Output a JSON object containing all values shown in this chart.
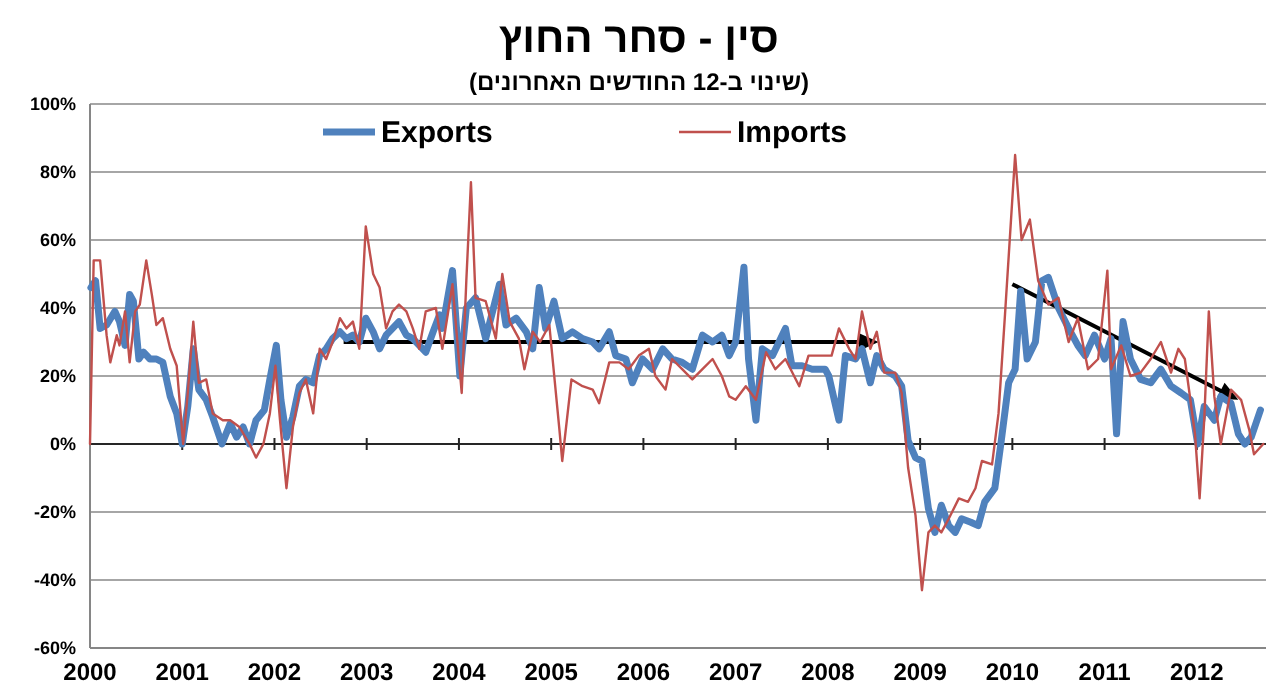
{
  "chart_data": {
    "type": "line",
    "title": "סין - סחר החוץ",
    "subtitle": "(שינוי ב-12 החודשים האחרונים)",
    "xlim": [
      2000,
      2012.75
    ],
    "xticks": [
      2000,
      2001,
      2002,
      2003,
      2004,
      2005,
      2006,
      2007,
      2008,
      2009,
      2010,
      2011,
      2012
    ],
    "ylim": [
      -60,
      100
    ],
    "yticks": [
      {
        "value": -60,
        "label": "-60%"
      },
      {
        "value": -40,
        "label": "-40%"
      },
      {
        "value": -20,
        "label": "-20%"
      },
      {
        "value": 0,
        "label": "0%"
      },
      {
        "value": 20,
        "label": "20%"
      },
      {
        "value": 40,
        "label": "40%"
      },
      {
        "value": 60,
        "label": "60%"
      },
      {
        "value": 80,
        "label": "80%"
      },
      {
        "value": 100,
        "label": "100%"
      }
    ],
    "grid": "y",
    "legend": "top",
    "marker": "none",
    "line_style": "solid",
    "series": [
      {
        "name": "Exports",
        "color": "#4f81bd",
        "x": [
          2000.01,
          2000.06,
          2000.11,
          2000.18,
          2000.27,
          2000.32,
          2000.38,
          2000.43,
          2000.47,
          2000.53,
          2000.58,
          2000.65,
          2000.72,
          2000.79,
          2000.87,
          2000.94,
          2001.0,
          2001.06,
          2001.12,
          2001.18,
          2001.26,
          2001.33,
          2001.43,
          2001.52,
          2001.59,
          2001.66,
          2001.73,
          2001.8,
          2001.89,
          2001.95,
          2002.02,
          2002.07,
          2002.13,
          2002.2,
          2002.27,
          2002.34,
          2002.42,
          2002.49,
          2002.56,
          2002.63,
          2002.71,
          2002.78,
          2002.85,
          2002.92,
          2002.99,
          2003.07,
          2003.14,
          2003.21,
          2003.28,
          2003.35,
          2003.43,
          2003.5,
          2003.57,
          2003.64,
          2003.72,
          2003.79,
          2003.82,
          2003.93,
          2004.01,
          2004.08,
          2004.18,
          2004.29,
          2004.44,
          2004.51,
          2004.62,
          2004.73,
          2004.8,
          2004.87,
          2004.94,
          2005.03,
          2005.12,
          2005.23,
          2005.34,
          2005.45,
          2005.52,
          2005.63,
          2005.7,
          2005.81,
          2005.88,
          2005.99,
          2006.1,
          2006.21,
          2006.31,
          2006.42,
          2006.53,
          2006.64,
          2006.75,
          2006.85,
          2006.93,
          2007.0,
          2007.09,
          2007.14,
          2007.22,
          2007.29,
          2007.4,
          2007.54,
          2007.61,
          2007.72,
          2007.83,
          2007.97,
          2008.01,
          2008.12,
          2008.19,
          2008.3,
          2008.37,
          2008.46,
          2008.53,
          2008.61,
          2008.73,
          2008.8,
          2008.87,
          2008.95,
          2009.02,
          2009.09,
          2009.16,
          2009.23,
          2009.31,
          2009.38,
          2009.45,
          2009.55,
          2009.63,
          2009.7,
          2009.81,
          2009.88,
          2009.96,
          2010.03,
          2010.09,
          2010.16,
          2010.25,
          2010.32,
          2010.39,
          2010.5,
          2010.61,
          2010.71,
          2010.79,
          2010.89,
          2011.0,
          2011.07,
          2011.13,
          2011.2,
          2011.28,
          2011.39,
          2011.5,
          2011.61,
          2011.72,
          2011.83,
          2011.93,
          2012.01,
          2012.08,
          2012.19,
          2012.26,
          2012.37,
          2012.45,
          2012.52,
          2012.59,
          2012.69
        ],
        "values": [
          46,
          48,
          34,
          35,
          39,
          36,
          29,
          44,
          42,
          25,
          27,
          25,
          25,
          24,
          14,
          9,
          0,
          11,
          28,
          16,
          13,
          8,
          0,
          6,
          2,
          5,
          0,
          7,
          10,
          19,
          29,
          13,
          2,
          8,
          17,
          19,
          18,
          26,
          28,
          31,
          33,
          31,
          32,
          30,
          37,
          33,
          28,
          32,
          34,
          36,
          32,
          31,
          29,
          27,
          33,
          38,
          34,
          51,
          20,
          40,
          43,
          31,
          47,
          35,
          37,
          33,
          28,
          46,
          34,
          42,
          31,
          33,
          31,
          30,
          28,
          33,
          26,
          25,
          18,
          25,
          22,
          28,
          25,
          24,
          22,
          32,
          30,
          32,
          26,
          30,
          52,
          25,
          7,
          28,
          26,
          34,
          23,
          23,
          22,
          22,
          20,
          7,
          26,
          25,
          28,
          18,
          26,
          22,
          20,
          17,
          1,
          -4,
          -5,
          -19,
          -26,
          -18,
          -24,
          -26,
          -22,
          -23,
          -24,
          -17,
          -13,
          1,
          18,
          22,
          45,
          25,
          30,
          48,
          49,
          40,
          34,
          29,
          26,
          32,
          25,
          31,
          3,
          36,
          25,
          19,
          18,
          22,
          17,
          15,
          13,
          0,
          11,
          7,
          14,
          12,
          3,
          0,
          2,
          10
        ]
      },
      {
        "name": "Imports",
        "color": "#c0504d",
        "x": [
          2000.0,
          2000.04,
          2000.11,
          2000.18,
          2000.22,
          2000.29,
          2000.32,
          2000.38,
          2000.43,
          2000.49,
          2000.54,
          2000.61,
          2000.67,
          2000.72,
          2000.79,
          2000.87,
          2000.94,
          2001.01,
          2001.06,
          2001.12,
          2001.18,
          2001.26,
          2001.33,
          2001.44,
          2001.52,
          2001.62,
          2001.73,
          2001.8,
          2001.88,
          2001.95,
          2002.01,
          2002.06,
          2002.13,
          2002.2,
          2002.27,
          2002.34,
          2002.42,
          2002.49,
          2002.56,
          2002.63,
          2002.71,
          2002.78,
          2002.85,
          2002.92,
          2002.99,
          2003.07,
          2003.14,
          2003.21,
          2003.28,
          2003.35,
          2003.43,
          2003.5,
          2003.57,
          2003.64,
          2003.75,
          2003.82,
          2003.93,
          2004.03,
          2004.08,
          2004.13,
          2004.18,
          2004.29,
          2004.4,
          2004.47,
          2004.55,
          2004.65,
          2004.71,
          2004.8,
          2004.88,
          2004.98,
          2005.09,
          2005.12,
          2005.22,
          2005.34,
          2005.45,
          2005.52,
          2005.63,
          2005.74,
          2005.84,
          2005.95,
          2006.06,
          2006.13,
          2006.24,
          2006.31,
          2006.42,
          2006.53,
          2006.64,
          2006.75,
          2006.85,
          2006.93,
          2007.0,
          2007.11,
          2007.22,
          2007.33,
          2007.43,
          2007.54,
          2007.69,
          2007.79,
          2007.97,
          2008.04,
          2008.12,
          2008.23,
          2008.3,
          2008.37,
          2008.46,
          2008.53,
          2008.61,
          2008.73,
          2008.8,
          2008.87,
          2008.95,
          2009.02,
          2009.09,
          2009.16,
          2009.23,
          2009.31,
          2009.42,
          2009.52,
          2009.6,
          2009.67,
          2009.78,
          2009.85,
          2009.92,
          2010.03,
          2010.1,
          2010.19,
          2010.28,
          2010.39,
          2010.5,
          2010.61,
          2010.71,
          2010.82,
          2010.93,
          2011.03,
          2011.07,
          2011.18,
          2011.28,
          2011.39,
          2011.5,
          2011.61,
          2011.72,
          2011.8,
          2011.87,
          2011.98,
          2012.03,
          2012.08,
          2012.13,
          2012.19,
          2012.26,
          2012.37,
          2012.48,
          2012.57,
          2012.62,
          2012.72
        ],
        "values": [
          0,
          54,
          54,
          32,
          24,
          32,
          29,
          39,
          24,
          39,
          41,
          54,
          44,
          35,
          37,
          28,
          23,
          0,
          15,
          36,
          18,
          19,
          9,
          7,
          7,
          5,
          0,
          -4,
          0,
          9,
          23,
          7,
          -13,
          5,
          15,
          19,
          9,
          28,
          25,
          30,
          37,
          34,
          36,
          28,
          64,
          50,
          46,
          34,
          39,
          41,
          39,
          34,
          28,
          39,
          40,
          28,
          47,
          15,
          48,
          77,
          43,
          42,
          31,
          50,
          36,
          31,
          22,
          33,
          30,
          35,
          4,
          -5,
          19,
          17,
          16,
          12,
          24,
          24,
          22,
          26,
          28,
          20,
          16,
          25,
          22,
          19,
          22,
          25,
          20,
          14,
          13,
          17,
          13,
          27,
          22,
          25,
          17,
          26,
          26,
          26,
          34,
          28,
          25,
          39,
          28,
          33,
          21,
          21,
          15,
          -7,
          -21,
          -43,
          -26,
          -24,
          -26,
          -22,
          -16,
          -17,
          -13,
          -5,
          -6,
          9,
          38,
          85,
          60,
          66,
          48,
          41,
          43,
          30,
          37,
          22,
          25,
          51,
          22,
          29,
          20,
          21,
          25,
          30,
          21,
          28,
          25,
          3,
          -16,
          7,
          39,
          14,
          0,
          16,
          13,
          4,
          -3,
          0
        ]
      }
    ]
  }
}
